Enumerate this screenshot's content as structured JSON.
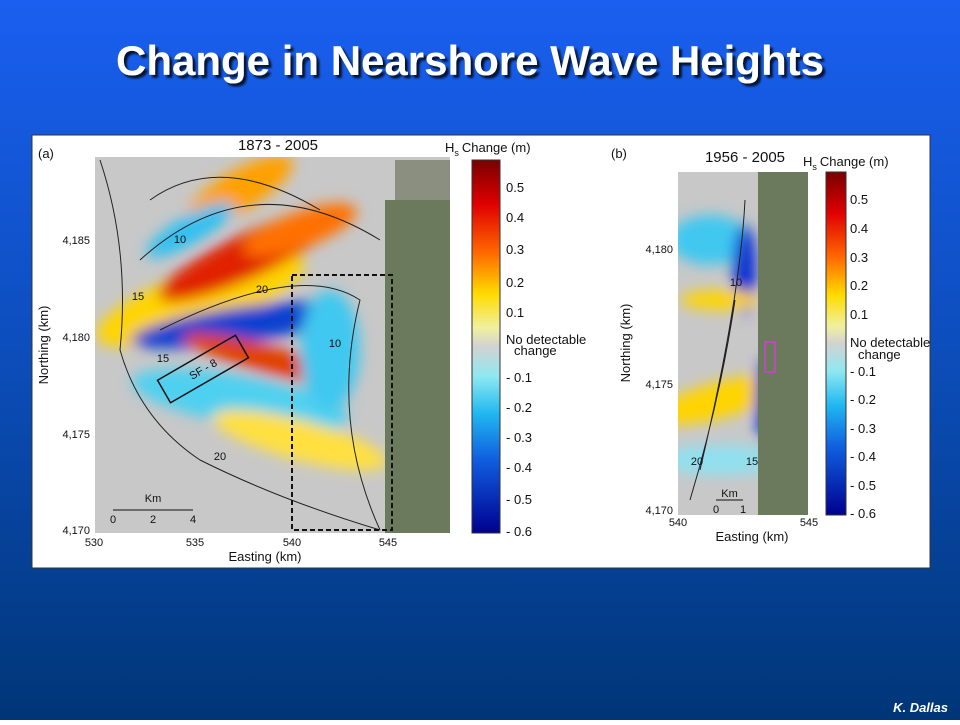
{
  "title": "Change in Nearshore Wave Heights",
  "credit": "K. Dallas",
  "panels": [
    {
      "label": "(a)",
      "period": "1873 - 2005",
      "legend_title": {
        "symbol": "H",
        "subscript": "s",
        "text": "Change (m)"
      },
      "colorbar_labels": [
        "0.5",
        "0.4",
        "0.3",
        "0.2",
        "0.1",
        "No detectable",
        "change",
        "- 0.1",
        "- 0.2",
        "- 0.3",
        "- 0.4",
        "- 0.5",
        "- 0.6"
      ],
      "y_axis_title": "Northing (km)",
      "x_axis_title": "Easting (km)",
      "y_ticks": [
        "4,185",
        "4,180",
        "4,175",
        "4,170"
      ],
      "x_ticks": [
        "530",
        "535",
        "540",
        "545"
      ],
      "contour_labels": [
        "10",
        "15",
        "20",
        "15",
        "20",
        "10"
      ],
      "box_label": "SF - 8",
      "scale": {
        "unit": "Km",
        "ticks": [
          "0",
          "2",
          "4"
        ]
      }
    },
    {
      "label": "(b)",
      "period": "1956 - 2005",
      "legend_title": {
        "symbol": "H",
        "subscript": "s",
        "text": "Change (m)"
      },
      "colorbar_labels": [
        "0.5",
        "0.4",
        "0.3",
        "0.2",
        "0.1",
        "No detectable",
        "change",
        "- 0.1",
        "- 0.2",
        "- 0.3",
        "- 0.4",
        "- 0.5",
        "- 0.6"
      ],
      "y_axis_title": "Northing (km)",
      "x_axis_title": "Easting (km)",
      "y_ticks": [
        "4,180",
        "4,175",
        "4,170"
      ],
      "x_ticks": [
        "540",
        "545"
      ],
      "contour_labels": [
        "10",
        "20",
        "15"
      ],
      "scale": {
        "unit": "Km",
        "ticks": [
          "0",
          "1"
        ]
      }
    }
  ]
}
